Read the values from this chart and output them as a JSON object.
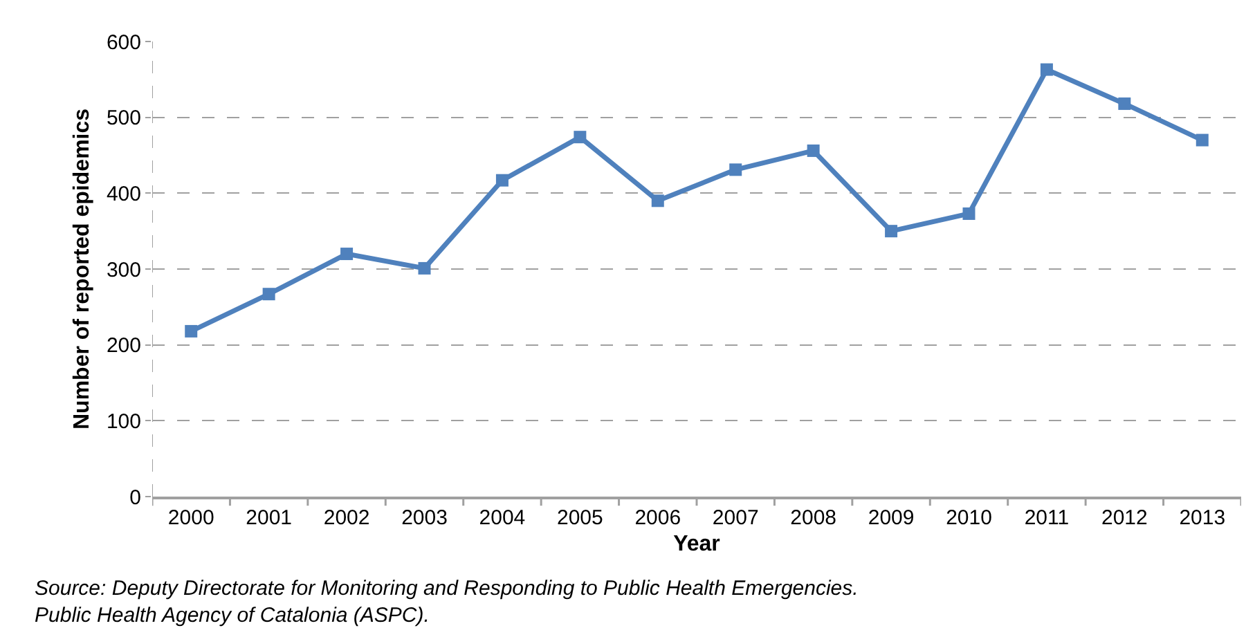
{
  "chart_data": {
    "type": "line",
    "xlabel": "Year",
    "ylabel": "Number of reported epidemics",
    "categories": [
      "2000",
      "2001",
      "2002",
      "2003",
      "2004",
      "2005",
      "2006",
      "2007",
      "2008",
      "2009",
      "2010",
      "2011",
      "2012",
      "2013"
    ],
    "series": [
      {
        "color": "#4f81bd",
        "values": [
          218,
          267,
          320,
          301,
          417,
          474,
          390,
          431,
          456,
          350,
          373,
          563,
          518,
          470
        ]
      }
    ],
    "ylim": [
      0,
      600
    ],
    "yticks": [
      0,
      100,
      200,
      300,
      400,
      500,
      600
    ],
    "grid": "y",
    "marker": "square",
    "line_style": "solid",
    "annotations": [
      "Source: Deputy Directorate for Monitoring and Responding to Public Health Emergencies. Public Health Agency of Catalonia (ASPC)."
    ]
  }
}
